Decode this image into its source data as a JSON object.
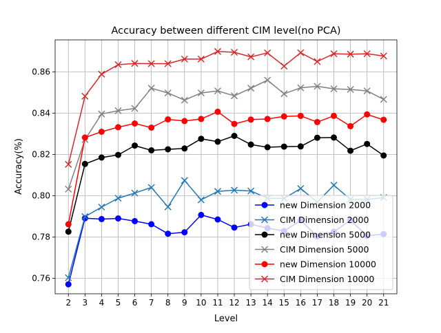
{
  "chart_data": {
    "type": "line",
    "title": "Accuracy between different CIM level(no PCA)",
    "xlabel": "Level",
    "ylabel": "Accuracy(%)",
    "xlim": [
      1.2,
      21.8
    ],
    "ylim": [
      0.7525,
      0.8755
    ],
    "x": [
      2,
      3,
      4,
      5,
      6,
      7,
      8,
      9,
      10,
      11,
      12,
      13,
      14,
      15,
      16,
      17,
      18,
      19,
      20,
      21
    ],
    "xticks": [
      2,
      3,
      4,
      5,
      6,
      7,
      8,
      9,
      10,
      11,
      12,
      13,
      14,
      15,
      16,
      17,
      18,
      19,
      20,
      21
    ],
    "yticks": [
      0.76,
      0.78,
      0.8,
      0.82,
      0.84,
      0.86
    ],
    "ytick_labels": [
      "0.76",
      "0.78",
      "0.80",
      "0.82",
      "0.84",
      "0.86"
    ],
    "grid": true,
    "legend_position": "lower-right",
    "series": [
      {
        "name": "new Dimension 2000",
        "color": "#0000ff",
        "marker": "circle",
        "values": [
          0.7571,
          0.7891,
          0.7887,
          0.789,
          0.7877,
          0.7862,
          0.7816,
          0.7823,
          0.7907,
          0.7885,
          0.7846,
          0.7862,
          0.7843,
          0.7829,
          0.7881,
          0.7803,
          0.7826,
          0.7881,
          0.7806,
          0.7814
        ]
      },
      {
        "name": "CIM Dimension 2000",
        "color": "#1f77b4",
        "marker": "x",
        "values": [
          0.7603,
          0.7899,
          0.7945,
          0.7988,
          0.8013,
          0.804,
          0.7946,
          0.8074,
          0.798,
          0.8021,
          0.8027,
          0.8023,
          0.7988,
          0.7987,
          0.8035,
          0.7969,
          0.8051,
          0.7982,
          0.7982,
          0.7991
        ]
      },
      {
        "name": "new Dimension 5000",
        "color": "#000000",
        "marker": "circle",
        "values": [
          0.7826,
          0.8154,
          0.8185,
          0.8198,
          0.8243,
          0.822,
          0.8225,
          0.8229,
          0.8276,
          0.8262,
          0.829,
          0.8248,
          0.8235,
          0.8238,
          0.8239,
          0.8281,
          0.8282,
          0.8218,
          0.8251,
          0.8195
        ]
      },
      {
        "name": "CIM Dimension 5000",
        "color": "#808080",
        "marker": "x",
        "values": [
          0.8032,
          0.8272,
          0.8396,
          0.8412,
          0.8423,
          0.8521,
          0.8498,
          0.8463,
          0.8498,
          0.8508,
          0.8484,
          0.8521,
          0.856,
          0.8494,
          0.8523,
          0.853,
          0.8518,
          0.8515,
          0.8508,
          0.8467
        ]
      },
      {
        "name": "new Dimension 10000",
        "color": "#ff0000",
        "marker": "circle",
        "values": [
          0.7862,
          0.8282,
          0.831,
          0.8332,
          0.835,
          0.833,
          0.837,
          0.8362,
          0.8372,
          0.8407,
          0.8348,
          0.8369,
          0.8372,
          0.8384,
          0.8387,
          0.8357,
          0.8387,
          0.8337,
          0.8394,
          0.8368
        ]
      },
      {
        "name": "CIM Dimension 10000",
        "color": "#d62728",
        "marker": "x",
        "values": [
          0.8152,
          0.8482,
          0.8589,
          0.8635,
          0.8641,
          0.864,
          0.864,
          0.8662,
          0.8662,
          0.8699,
          0.8695,
          0.8673,
          0.8692,
          0.8628,
          0.8693,
          0.865,
          0.8688,
          0.8686,
          0.8688,
          0.8677
        ]
      }
    ]
  }
}
